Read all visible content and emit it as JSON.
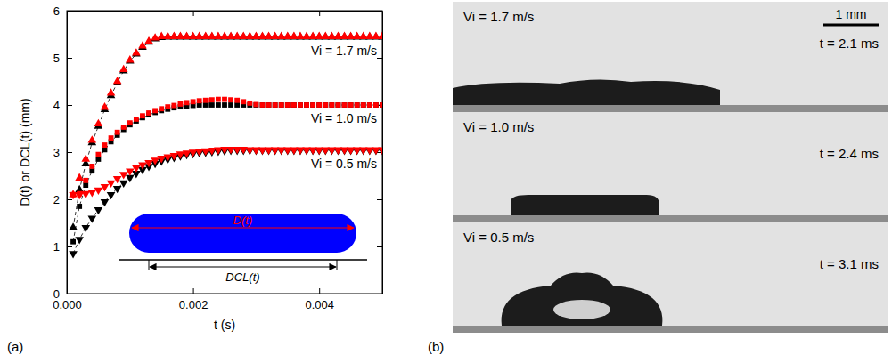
{
  "chart_data": {
    "type": "scatter",
    "x_label": "t (s)",
    "y_label": "D(t) or DCL(t) (mm)",
    "xlim": [
      0,
      0.005
    ],
    "xticks": [
      {
        "value": 0,
        "label": "0.000"
      },
      {
        "value": 0.002,
        "label": "0.002"
      },
      {
        "value": 0.004,
        "label": "0.004"
      }
    ],
    "ylim": [
      0,
      6
    ],
    "yticks": [
      0,
      1,
      2,
      3,
      4,
      5,
      6
    ],
    "annotations": [
      "Vi = 1.7 m/s",
      "Vi = 1.0 m/s",
      "Vi = 0.5 m/s"
    ],
    "inset_labels": [
      "D(t)",
      "DCL(t)"
    ],
    "x": [
      0.0001,
      0.0002,
      0.0003,
      0.0004,
      0.0005,
      0.0006,
      0.0007,
      0.0008,
      0.0009,
      0.001,
      0.0011,
      0.0012,
      0.0013,
      0.0014,
      0.0015,
      0.0016,
      0.0017,
      0.0018,
      0.0019,
      0.002,
      0.0021,
      0.0022,
      0.0023,
      0.0024,
      0.0025,
      0.0026,
      0.0027,
      0.0028,
      0.0029,
      0.003,
      0.0031,
      0.0032,
      0.0033,
      0.0034,
      0.0035,
      0.0036,
      0.0037,
      0.0038,
      0.0039,
      0.004,
      0.0041,
      0.0042,
      0.0043,
      0.0044,
      0.0045,
      0.0046,
      0.0047,
      0.0048,
      0.0049,
      0.005
    ],
    "series": [
      {
        "color": "#000000",
        "marker": "triangle-up",
        "line_style": "dashed",
        "values": [
          1.4,
          2.2,
          2.75,
          3.2,
          3.55,
          3.9,
          4.2,
          4.47,
          4.72,
          4.93,
          5.08,
          5.22,
          5.33,
          5.4,
          5.43,
          5.44,
          5.44,
          5.44,
          5.44,
          5.44,
          5.44,
          5.44,
          5.44,
          5.44,
          5.44,
          5.44,
          5.44,
          5.44,
          5.44,
          5.44,
          5.44,
          5.44,
          5.44,
          5.44,
          5.44,
          5.44,
          5.44,
          5.44,
          5.44,
          5.44,
          5.44,
          5.44,
          5.44,
          5.44,
          5.44,
          5.44,
          5.44,
          5.44,
          5.44,
          5.44
        ]
      },
      {
        "color": "#ff0000",
        "marker": "triangle-up",
        "line_style": "none",
        "values": [
          2.1,
          2.45,
          2.85,
          3.25,
          3.6,
          3.95,
          4.25,
          4.5,
          4.75,
          4.95,
          5.1,
          5.25,
          5.35,
          5.42,
          5.45,
          5.45,
          5.45,
          5.45,
          5.45,
          5.45,
          5.45,
          5.45,
          5.45,
          5.45,
          5.45,
          5.45,
          5.45,
          5.45,
          5.45,
          5.45,
          5.45,
          5.45,
          5.45,
          5.45,
          5.45,
          5.45,
          5.45,
          5.45,
          5.45,
          5.45,
          5.45,
          5.45,
          5.45,
          5.45,
          5.45,
          5.45,
          5.45,
          5.45,
          5.45,
          5.45
        ]
      },
      {
        "color": "#000000",
        "marker": "square",
        "line_style": "dashed",
        "values": [
          1.1,
          1.85,
          2.3,
          2.6,
          2.85,
          3.05,
          3.22,
          3.36,
          3.48,
          3.58,
          3.66,
          3.73,
          3.79,
          3.84,
          3.88,
          3.91,
          3.94,
          3.96,
          3.98,
          3.99,
          4,
          4,
          4,
          4,
          4,
          4,
          4,
          4,
          4,
          4,
          4,
          4,
          4,
          4,
          4,
          4,
          4,
          4,
          4,
          4,
          4,
          4,
          4,
          4,
          4,
          4,
          4,
          4,
          4,
          4
        ]
      },
      {
        "color": "#ff0000",
        "marker": "square",
        "line_style": "none",
        "values": [
          2.1,
          2.12,
          2.4,
          2.7,
          2.95,
          3.15,
          3.3,
          3.42,
          3.53,
          3.62,
          3.7,
          3.77,
          3.83,
          3.88,
          3.92,
          3.96,
          3.99,
          4.02,
          4.05,
          4.07,
          4.09,
          4.1,
          4.11,
          4.12,
          4.12,
          4.11,
          4.1,
          4.07,
          4.04,
          4.01,
          4,
          4,
          4,
          4,
          4,
          4,
          4,
          4,
          4,
          4,
          4,
          4,
          4,
          4,
          4,
          4,
          4,
          4,
          4,
          4
        ]
      },
      {
        "color": "#000000",
        "marker": "triangle-down",
        "line_style": "dashed",
        "values": [
          0.85,
          1.15,
          1.4,
          1.6,
          1.78,
          1.95,
          2.1,
          2.23,
          2.35,
          2.46,
          2.55,
          2.63,
          2.7,
          2.76,
          2.81,
          2.85,
          2.89,
          2.92,
          2.95,
          2.97,
          2.99,
          3,
          3.01,
          3.02,
          3.03,
          3.04,
          3.04,
          3.04,
          3.04,
          3.04,
          3.04,
          3.04,
          3.04,
          3.04,
          3.04,
          3.04,
          3.04,
          3.04,
          3.04,
          3.04,
          3.04,
          3.04,
          3.04,
          3.04,
          3.04,
          3.04,
          3.04,
          3.04,
          3.04,
          3.04
        ]
      },
      {
        "color": "#ff0000",
        "marker": "triangle-down",
        "line_style": "none",
        "values": [
          2.1,
          2.1,
          2.12,
          2.15,
          2.2,
          2.27,
          2.35,
          2.44,
          2.53,
          2.6,
          2.67,
          2.73,
          2.78,
          2.83,
          2.87,
          2.9,
          2.93,
          2.96,
          2.98,
          3,
          3.02,
          3.03,
          3.04,
          3.05,
          3.06,
          3.06,
          3.06,
          3.06,
          3.05,
          3.05,
          3.05,
          3.05,
          3.05,
          3.05,
          3.05,
          3.05,
          3.05,
          3.05,
          3.05,
          3.05,
          3.05,
          3.05,
          3.05,
          3.05,
          3.05,
          3.05,
          3.05,
          3.05,
          3.05,
          3.05
        ]
      }
    ]
  },
  "panel_labels": [
    "(a)",
    "(b)"
  ],
  "photos": {
    "scale_bar": "1 mm",
    "frames": [
      {
        "velocity": "Vi = 1.7 m/s",
        "time": "t = 2.1 ms"
      },
      {
        "velocity": "Vi = 1.0 m/s",
        "time": "t = 2.4 ms"
      },
      {
        "velocity": "Vi = 0.5 m/s",
        "time": "t = 3.1 ms"
      }
    ]
  }
}
